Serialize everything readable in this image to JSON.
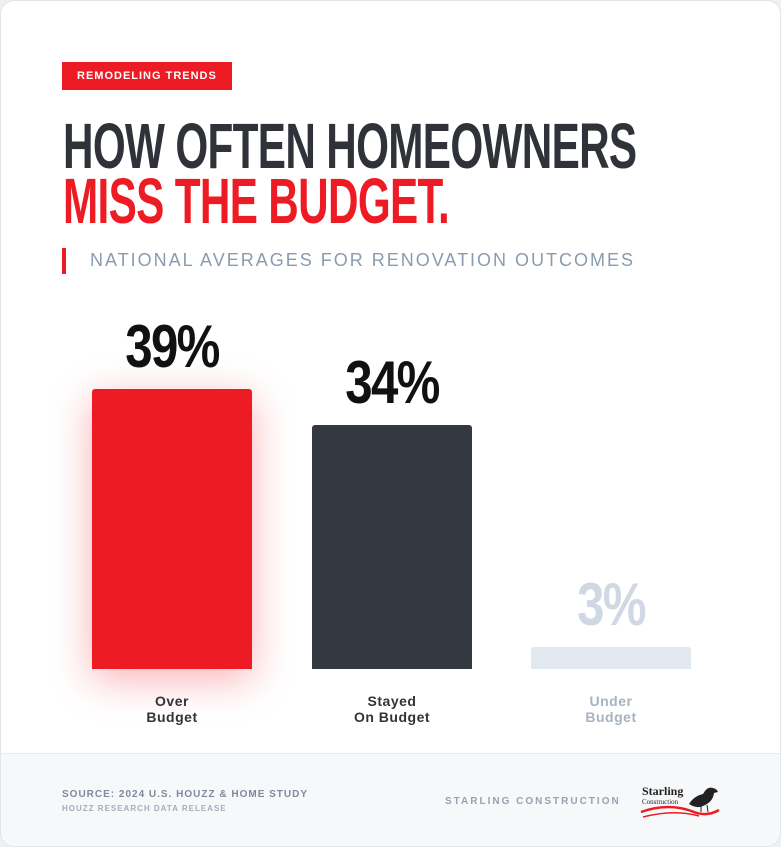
{
  "tag": "REMODELING TRENDS",
  "chart_data": {
    "type": "bar",
    "title_line1": "HOW OFTEN HOMEOWNERS",
    "title_line2": "MISS THE BUDGET.",
    "subtitle": "NATIONAL AVERAGES FOR RENOVATION OUTCOMES",
    "categories": [
      "Over\nBudget",
      "Stayed\nOn Budget",
      "Under\nBudget"
    ],
    "values": [
      39,
      34,
      3
    ],
    "value_labels": [
      "39%",
      "34%",
      "3%"
    ],
    "colors": [
      "#ed1c24",
      "#343840",
      "#e2e8f0"
    ],
    "label_colors": [
      "#111111",
      "#111111",
      "#cfd8e3"
    ],
    "category_colors": [
      "#333333",
      "#333333",
      "#a7b2c2"
    ]
  },
  "footer": {
    "source": "SOURCE: 2024 U.S. HOUZZ & HOME STUDY",
    "source_note": "HOUZZ RESEARCH DATA RELEASE",
    "brand": "STARLING CONSTRUCTION",
    "logo_name": "Starling",
    "logo_sub": "Construction"
  }
}
